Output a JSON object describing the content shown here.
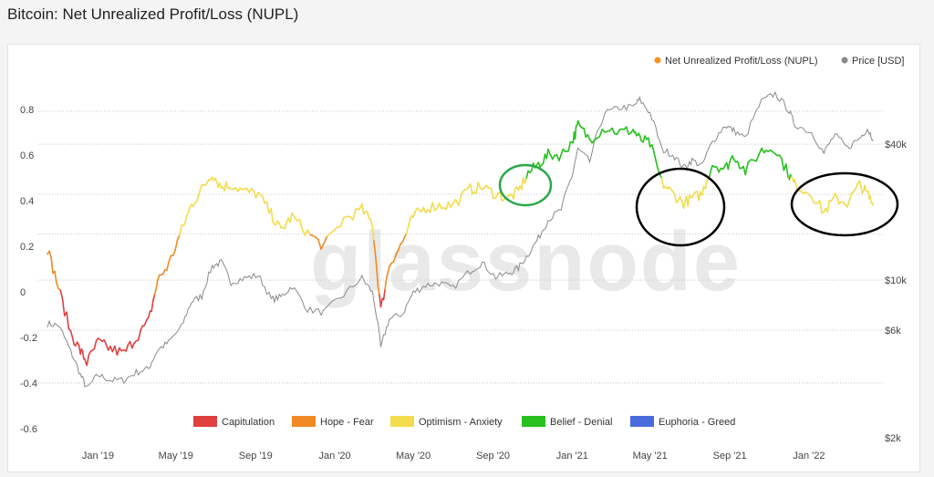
{
  "title": "Bitcoin: Net Unrealized Profit/Loss (NUPL)",
  "watermark": "glassnode",
  "colors": {
    "nupl_marker": "#f7931a",
    "price_line": "#8a8a8a",
    "capitulation": "#e0403f",
    "hope_fear": "#f08a24",
    "optimism_anxiety": "#f2dc4c",
    "belief_denial": "#27c01e",
    "euphoria_greed": "#4a6bdc",
    "annotation_green": "#2aa84a",
    "annotation_black": "#000000"
  },
  "legend_top": {
    "nupl": "Net Unrealized Profit/Loss (NUPL)",
    "price": "Price [USD]"
  },
  "legend_bottom": [
    {
      "label": "Capitulation",
      "color_key": "capitulation"
    },
    {
      "label": "Hope - Fear",
      "color_key": "hope_fear"
    },
    {
      "label": "Optimism - Anxiety",
      "color_key": "optimism_anxiety"
    },
    {
      "label": "Belief - Denial",
      "color_key": "belief_denial"
    },
    {
      "label": "Euphoria - Greed",
      "color_key": "euphoria_greed"
    }
  ],
  "chart_data": {
    "type": "line",
    "y_left_ticks": [
      "0.8",
      "0.6",
      "0.4",
      "0.2",
      "0",
      "-0.2",
      "-0.4",
      "-0.6"
    ],
    "y_right_ticks": [
      "$40k",
      "$10k",
      "$6k",
      "$2k"
    ],
    "x_ticks": [
      "Jan '19",
      "May '19",
      "Sep '19",
      "Jan '20",
      "May '20",
      "Sep '20",
      "Jan '21",
      "May '21",
      "Sep '21",
      "Jan '22"
    ],
    "ylim_left": [
      -0.6,
      0.9
    ],
    "series": [
      {
        "name": "Net Unrealized Profit/Loss (NUPL)",
        "axis": "left",
        "x": [
          "2018-10-15",
          "2018-11-01",
          "2018-11-20",
          "2018-12-05",
          "2018-12-15",
          "2019-01-01",
          "2019-01-20",
          "2019-02-10",
          "2019-03-01",
          "2019-03-20",
          "2019-04-03",
          "2019-04-20",
          "2019-05-10",
          "2019-05-25",
          "2019-06-10",
          "2019-06-26",
          "2019-07-10",
          "2019-07-25",
          "2019-08-15",
          "2019-09-05",
          "2019-09-25",
          "2019-10-10",
          "2019-10-27",
          "2019-11-20",
          "2019-12-15",
          "2020-01-15",
          "2020-02-12",
          "2020-02-28",
          "2020-03-12",
          "2020-03-25",
          "2020-04-15",
          "2020-05-01",
          "2020-05-20",
          "2020-06-10",
          "2020-07-01",
          "2020-07-28",
          "2020-08-15",
          "2020-09-05",
          "2020-09-25",
          "2020-10-10",
          "2020-10-25",
          "2020-11-10",
          "2020-11-25",
          "2020-12-15",
          "2021-01-01",
          "2021-01-10",
          "2021-01-28",
          "2021-02-20",
          "2021-03-15",
          "2021-04-05",
          "2021-04-15",
          "2021-05-01",
          "2021-05-19",
          "2021-06-05",
          "2021-06-22",
          "2021-07-05",
          "2021-07-20",
          "2021-08-05",
          "2021-08-25",
          "2021-09-07",
          "2021-09-25",
          "2021-10-20",
          "2021-11-10",
          "2021-11-30",
          "2021-12-10",
          "2022-01-05",
          "2022-01-24",
          "2022-02-10",
          "2022-03-01",
          "2022-03-20",
          "2022-04-01",
          "2022-04-10"
        ],
        "values": [
          0.19,
          0.02,
          -0.18,
          -0.26,
          -0.31,
          -0.22,
          -0.25,
          -0.27,
          -0.2,
          -0.13,
          0.05,
          0.12,
          0.27,
          0.38,
          0.45,
          0.52,
          0.46,
          0.47,
          0.44,
          0.43,
          0.34,
          0.27,
          0.33,
          0.26,
          0.2,
          0.32,
          0.36,
          0.3,
          -0.08,
          0.12,
          0.22,
          0.33,
          0.37,
          0.38,
          0.38,
          0.45,
          0.46,
          0.43,
          0.41,
          0.44,
          0.52,
          0.56,
          0.6,
          0.6,
          0.66,
          0.73,
          0.67,
          0.72,
          0.7,
          0.71,
          0.67,
          0.65,
          0.48,
          0.43,
          0.39,
          0.41,
          0.43,
          0.56,
          0.54,
          0.6,
          0.53,
          0.62,
          0.63,
          0.52,
          0.47,
          0.43,
          0.35,
          0.41,
          0.39,
          0.47,
          0.43,
          0.38
        ]
      },
      {
        "name": "Price [USD]",
        "axis": "right",
        "x": [
          "2018-10-15",
          "2018-11-01",
          "2018-11-20",
          "2018-12-05",
          "2018-12-15",
          "2019-01-01",
          "2019-01-20",
          "2019-02-10",
          "2019-03-01",
          "2019-03-20",
          "2019-04-03",
          "2019-04-20",
          "2019-05-10",
          "2019-05-25",
          "2019-06-10",
          "2019-06-26",
          "2019-07-10",
          "2019-07-25",
          "2019-08-15",
          "2019-09-05",
          "2019-09-25",
          "2019-10-10",
          "2019-10-27",
          "2019-11-20",
          "2019-12-15",
          "2020-01-15",
          "2020-02-12",
          "2020-02-28",
          "2020-03-12",
          "2020-03-25",
          "2020-04-15",
          "2020-05-01",
          "2020-05-20",
          "2020-06-10",
          "2020-07-01",
          "2020-07-28",
          "2020-08-15",
          "2020-09-05",
          "2020-09-25",
          "2020-10-10",
          "2020-10-25",
          "2020-11-10",
          "2020-11-25",
          "2020-12-15",
          "2021-01-01",
          "2021-01-10",
          "2021-01-28",
          "2021-02-20",
          "2021-03-15",
          "2021-04-05",
          "2021-04-15",
          "2021-05-01",
          "2021-05-19",
          "2021-06-05",
          "2021-06-22",
          "2021-07-05",
          "2021-07-20",
          "2021-08-05",
          "2021-08-25",
          "2021-09-07",
          "2021-09-25",
          "2021-10-20",
          "2021-11-10",
          "2021-11-30",
          "2021-12-10",
          "2022-01-05",
          "2022-01-24",
          "2022-02-10",
          "2022-03-01",
          "2022-03-20",
          "2022-04-01",
          "2022-04-10"
        ],
        "values": [
          6400,
          6300,
          4800,
          3800,
          3300,
          3800,
          3600,
          3600,
          3900,
          4050,
          4900,
          5300,
          6200,
          8000,
          8500,
          11500,
          12000,
          9800,
          10200,
          10500,
          8200,
          8400,
          9400,
          7400,
          7200,
          8600,
          10200,
          8800,
          5000,
          6700,
          7100,
          8800,
          9500,
          9700,
          9200,
          11000,
          11900,
          10300,
          10700,
          11300,
          13000,
          15300,
          18500,
          20500,
          29000,
          38000,
          33500,
          55000,
          58000,
          58500,
          63000,
          55000,
          38000,
          36000,
          31500,
          34000,
          32000,
          41000,
          48500,
          46000,
          42500,
          62000,
          67000,
          57000,
          49000,
          45000,
          36500,
          44000,
          38500,
          42500,
          47000,
          42000
        ]
      }
    ],
    "legend": [
      "Capitulation",
      "Hope - Fear",
      "Optimism - Anxiety",
      "Belief - Denial",
      "Euphoria - Greed"
    ]
  }
}
